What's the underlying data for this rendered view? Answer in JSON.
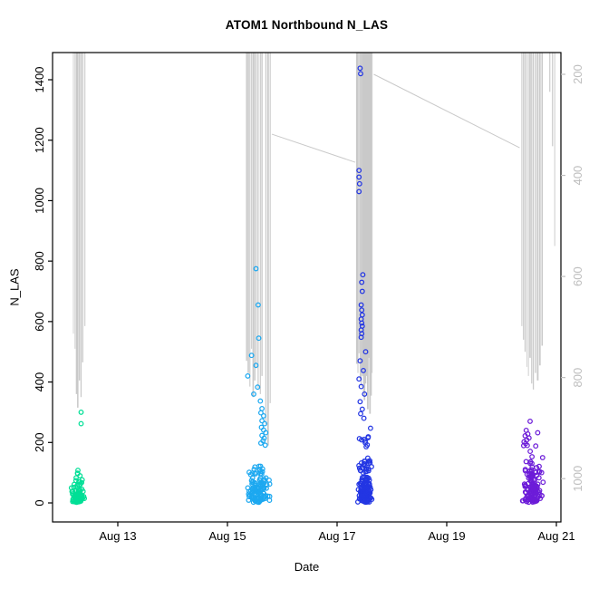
{
  "chart_data": {
    "type": "scatter",
    "title": "ATOM1 Northbound N_LAS",
    "xlabel": "Date",
    "ylabel": "N_LAS",
    "grid": false,
    "legend": "none",
    "x_axis": {
      "tick_labels": [
        "Aug 13",
        "Aug 15",
        "Aug 17",
        "Aug 19",
        "Aug 21"
      ],
      "tick_days": [
        13,
        15,
        17,
        19,
        21
      ],
      "range_days": [
        11.8,
        21.1
      ]
    },
    "y_axis_left": {
      "label": "N_LAS",
      "ticks": [
        0,
        200,
        400,
        600,
        800,
        1000,
        1200,
        1400
      ],
      "range": [
        -60,
        1490
      ],
      "color": "#000000"
    },
    "y_axis_right": {
      "ticks": [
        200,
        400,
        600,
        800,
        1000
      ],
      "reversed": true,
      "color": "#bebebe"
    },
    "gray_series": {
      "color": "#c9c9c9",
      "description": "background line series (right axis, reversed): vertical spikes from plot top plus two diagonal connectors",
      "spikes": [
        [
          12.19,
          560
        ],
        [
          12.22,
          510
        ],
        [
          12.25,
          360
        ],
        [
          12.27,
          315
        ],
        [
          12.3,
          405
        ],
        [
          12.33,
          350
        ],
        [
          12.36,
          465
        ],
        [
          12.4,
          585
        ],
        [
          15.35,
          470
        ],
        [
          15.38,
          430
        ],
        [
          15.41,
          385
        ],
        [
          15.44,
          510
        ],
        [
          15.47,
          350
        ],
        [
          15.5,
          405
        ],
        [
          15.53,
          445
        ],
        [
          15.56,
          380
        ],
        [
          15.6,
          360
        ],
        [
          15.63,
          420
        ],
        [
          15.7,
          260
        ],
        [
          15.74,
          190
        ],
        [
          15.78,
          330
        ],
        [
          17.36,
          460
        ],
        [
          17.38,
          430
        ],
        [
          17.4,
          495
        ],
        [
          17.42,
          410
        ],
        [
          17.44,
          385
        ],
        [
          17.46,
          445
        ],
        [
          17.47,
          420
        ],
        [
          17.48,
          365
        ],
        [
          17.5,
          340
        ],
        [
          17.51,
          400
        ],
        [
          17.52,
          395
        ],
        [
          17.54,
          420
        ],
        [
          17.56,
          310
        ],
        [
          17.58,
          480
        ],
        [
          17.6,
          295
        ],
        [
          17.62,
          355
        ],
        [
          17.64,
          430
        ],
        [
          20.37,
          585
        ],
        [
          20.4,
          540
        ],
        [
          20.43,
          500
        ],
        [
          20.46,
          450
        ],
        [
          20.49,
          420
        ],
        [
          20.52,
          480
        ],
        [
          20.55,
          395
        ],
        [
          20.58,
          375
        ],
        [
          20.62,
          430
        ],
        [
          20.66,
          405
        ],
        [
          20.7,
          455
        ],
        [
          20.74,
          520
        ],
        [
          20.88,
          1360
        ],
        [
          20.93,
          1180
        ],
        [
          20.97,
          850
        ]
      ],
      "diagonals": [
        [
          [
            15.81,
            1220
          ],
          [
            17.33,
            1127
          ]
        ],
        [
          [
            17.67,
            1418
          ],
          [
            20.33,
            1175
          ]
        ]
      ]
    },
    "clusters": [
      {
        "name": "cluster-aug12",
        "color": "#00DF96",
        "bulk": {
          "n": 88,
          "x_center": 12.27,
          "x_halfwidth": 0.13,
          "value_min": 2,
          "value_scale": 26,
          "value_max": 112,
          "seed": 11
        },
        "points": [
          [
            12.33,
            300
          ],
          [
            12.33,
            262
          ],
          [
            12.27,
            97
          ],
          [
            12.31,
            90
          ],
          [
            12.24,
            83
          ],
          [
            12.35,
            76
          ],
          [
            12.29,
            70
          ],
          [
            12.32,
            63
          ],
          [
            12.26,
            58
          ]
        ]
      },
      {
        "name": "cluster-aug15",
        "color": "#1CA8F0",
        "bulk": {
          "n": 122,
          "x_center": 15.58,
          "x_halfwidth": 0.22,
          "value_min": 2,
          "value_scale": 48,
          "value_max": 185,
          "seed": 22
        },
        "points": [
          [
            15.52,
            775
          ],
          [
            15.56,
            655
          ],
          [
            15.57,
            545
          ],
          [
            15.44,
            488
          ],
          [
            15.52,
            455
          ],
          [
            15.37,
            420
          ],
          [
            15.55,
            383
          ],
          [
            15.48,
            360
          ],
          [
            15.6,
            337
          ],
          [
            15.63,
            312
          ],
          [
            15.61,
            298
          ],
          [
            15.66,
            288
          ],
          [
            15.63,
            272
          ],
          [
            15.68,
            262
          ],
          [
            15.62,
            250
          ],
          [
            15.66,
            241
          ],
          [
            15.7,
            232
          ],
          [
            15.63,
            223
          ],
          [
            15.67,
            214
          ],
          [
            15.65,
            206
          ],
          [
            15.61,
            198
          ],
          [
            15.69,
            191
          ]
        ]
      },
      {
        "name": "cluster-aug17",
        "color": "#2336E3",
        "bulk": {
          "n": 152,
          "x_center": 17.5,
          "x_halfwidth": 0.14,
          "value_min": 2,
          "value_scale": 62,
          "value_max": 262,
          "seed": 33
        },
        "points": [
          [
            17.42,
            1438
          ],
          [
            17.43,
            1420
          ],
          [
            17.4,
            1100
          ],
          [
            17.4,
            1078
          ],
          [
            17.41,
            1056
          ],
          [
            17.4,
            1030
          ],
          [
            17.47,
            755
          ],
          [
            17.45,
            730
          ],
          [
            17.46,
            700
          ],
          [
            17.44,
            655
          ],
          [
            17.45,
            638
          ],
          [
            17.46,
            622
          ],
          [
            17.44,
            608
          ],
          [
            17.45,
            595
          ],
          [
            17.46,
            585
          ],
          [
            17.44,
            572
          ],
          [
            17.45,
            560
          ],
          [
            17.44,
            548
          ],
          [
            17.52,
            500
          ],
          [
            17.42,
            470
          ],
          [
            17.48,
            438
          ],
          [
            17.4,
            410
          ],
          [
            17.44,
            385
          ],
          [
            17.5,
            360
          ],
          [
            17.42,
            335
          ],
          [
            17.46,
            310
          ],
          [
            17.43,
            295
          ],
          [
            17.49,
            280
          ]
        ]
      },
      {
        "name": "cluster-aug20",
        "color": "#6C1CD8",
        "bulk": {
          "n": 128,
          "x_center": 20.56,
          "x_halfwidth": 0.21,
          "value_min": 2,
          "value_scale": 55,
          "value_max": 205,
          "seed": 44
        },
        "points": [
          [
            20.52,
            270
          ],
          [
            20.66,
            232
          ],
          [
            20.45,
            240
          ],
          [
            20.48,
            228
          ],
          [
            20.43,
            222
          ],
          [
            20.5,
            215
          ],
          [
            20.46,
            208
          ],
          [
            20.41,
            202
          ],
          [
            20.44,
            196
          ],
          [
            20.47,
            190
          ]
        ]
      }
    ]
  }
}
